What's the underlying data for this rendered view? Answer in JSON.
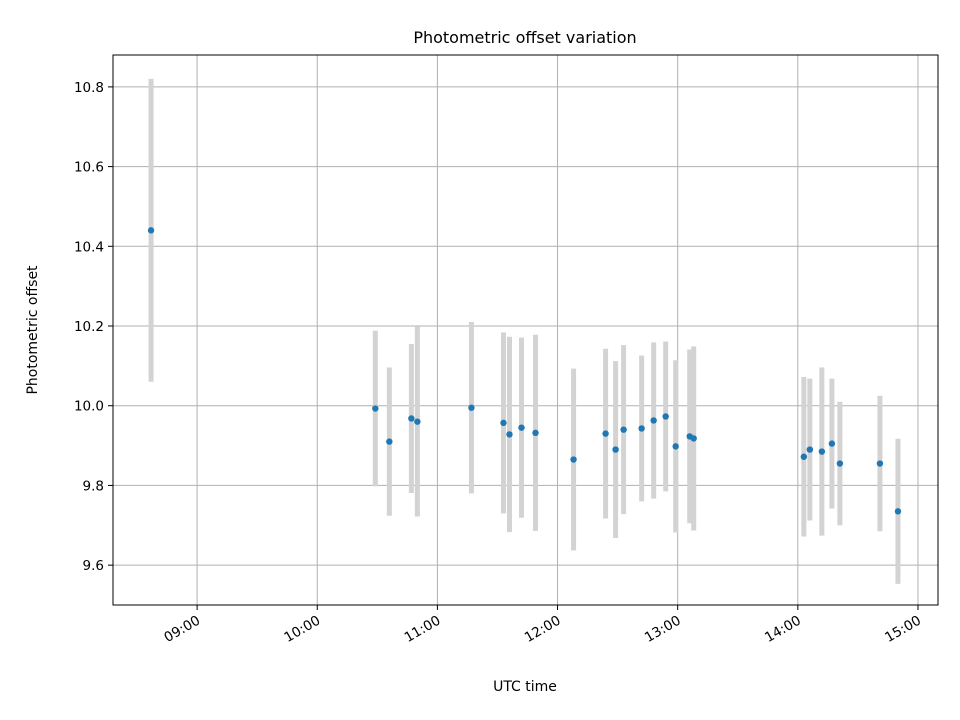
{
  "chart_data": {
    "type": "scatter",
    "title": "Photometric offset variation",
    "xlabel": "UTC time",
    "ylabel": "Photometric offset",
    "x_axis_kind": "time",
    "xlim": [
      "08:18",
      "15:10"
    ],
    "ylim": [
      9.5,
      10.88
    ],
    "x_ticks": [
      "09:00",
      "10:00",
      "11:00",
      "12:00",
      "13:00",
      "14:00",
      "15:00"
    ],
    "y_ticks": [
      9.6,
      9.8,
      10.0,
      10.2,
      10.4,
      10.6,
      10.8
    ],
    "y_tick_labels": [
      "9.6",
      "9.8",
      "10.0",
      "10.2",
      "10.4",
      "10.6",
      "10.8"
    ],
    "x_tick_label_rotation": "rotated ~30°",
    "grid": true,
    "legend": "none",
    "colors": {
      "points": "#1f77b4",
      "error_bars": "#d3d3d3",
      "grid": "#b0b0b0"
    },
    "series": [
      {
        "points": [
          {
            "x": "08:37",
            "y": 10.44,
            "err": 0.38
          },
          {
            "x": "10:29",
            "y": 9.993,
            "err": 0.195
          },
          {
            "x": "10:36",
            "y": 9.91,
            "err": 0.186
          },
          {
            "x": "10:47",
            "y": 9.968,
            "err": 0.187
          },
          {
            "x": "10:50",
            "y": 9.96,
            "err": 0.238
          },
          {
            "x": "11:17",
            "y": 9.995,
            "err": 0.215
          },
          {
            "x": "11:33",
            "y": 9.957,
            "err": 0.227
          },
          {
            "x": "11:36",
            "y": 9.928,
            "err": 0.245
          },
          {
            "x": "11:42",
            "y": 9.945,
            "err": 0.226
          },
          {
            "x": "11:49",
            "y": 9.932,
            "err": 0.246
          },
          {
            "x": "12:08",
            "y": 9.865,
            "err": 0.228
          },
          {
            "x": "12:24",
            "y": 9.93,
            "err": 0.213
          },
          {
            "x": "12:29",
            "y": 9.89,
            "err": 0.222
          },
          {
            "x": "12:33",
            "y": 9.94,
            "err": 0.212
          },
          {
            "x": "12:42",
            "y": 9.943,
            "err": 0.183
          },
          {
            "x": "12:48",
            "y": 9.963,
            "err": 0.196
          },
          {
            "x": "12:54",
            "y": 9.973,
            "err": 0.188
          },
          {
            "x": "12:59",
            "y": 9.898,
            "err": 0.216
          },
          {
            "x": "13:06",
            "y": 9.923,
            "err": 0.218
          },
          {
            "x": "13:08",
            "y": 9.918,
            "err": 0.231
          },
          {
            "x": "14:03",
            "y": 9.872,
            "err": 0.2
          },
          {
            "x": "14:06",
            "y": 9.89,
            "err": 0.178
          },
          {
            "x": "14:12",
            "y": 9.885,
            "err": 0.211
          },
          {
            "x": "14:17",
            "y": 9.905,
            "err": 0.163
          },
          {
            "x": "14:21",
            "y": 9.855,
            "err": 0.155
          },
          {
            "x": "14:41",
            "y": 9.855,
            "err": 0.17
          },
          {
            "x": "14:50",
            "y": 9.735,
            "err": 0.182
          }
        ]
      }
    ]
  }
}
